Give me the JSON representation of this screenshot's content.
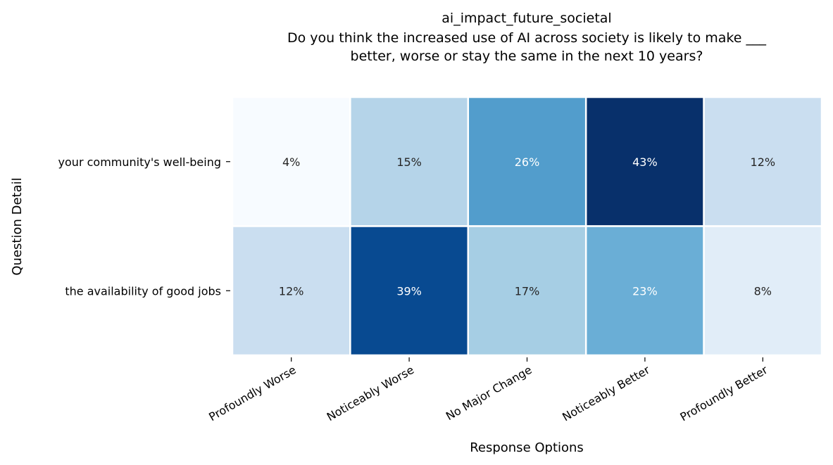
{
  "chart_data": {
    "type": "heatmap",
    "title_lines": [
      "ai_impact_future_societal",
      "Do you think the increased use of AI across society is likely to make  ___",
      "better, worse or stay the same in the next 10 years?"
    ],
    "xlabel": "Response Options",
    "ylabel": "Question Detail",
    "x_categories": [
      "Profoundly Worse",
      "Noticeably Worse",
      "No Major Change",
      "Noticeably Better",
      "Profoundly Better"
    ],
    "y_categories": [
      "your community's well-being",
      "the availability of good jobs"
    ],
    "values": [
      [
        4,
        15,
        26,
        43,
        12
      ],
      [
        12,
        39,
        17,
        23,
        8
      ]
    ],
    "value_labels": [
      [
        "4%",
        "15%",
        "26%",
        "43%",
        "12%"
      ],
      [
        "12%",
        "39%",
        "17%",
        "23%",
        "8%"
      ]
    ],
    "value_range": [
      4,
      43
    ],
    "colormap": "Blues",
    "colors": {
      "cells": [
        [
          "#f7fbff",
          "#b5d4e9",
          "#529dcc",
          "#08306b",
          "#cadef0"
        ],
        [
          "#cadef0",
          "#084a91",
          "#a6cee4",
          "#6aaed6",
          "#e1edf8"
        ]
      ],
      "light_text": "#ffffff",
      "dark_text": "#262626",
      "grid_line": "#ffffff"
    },
    "legend": "none",
    "grid": false
  }
}
